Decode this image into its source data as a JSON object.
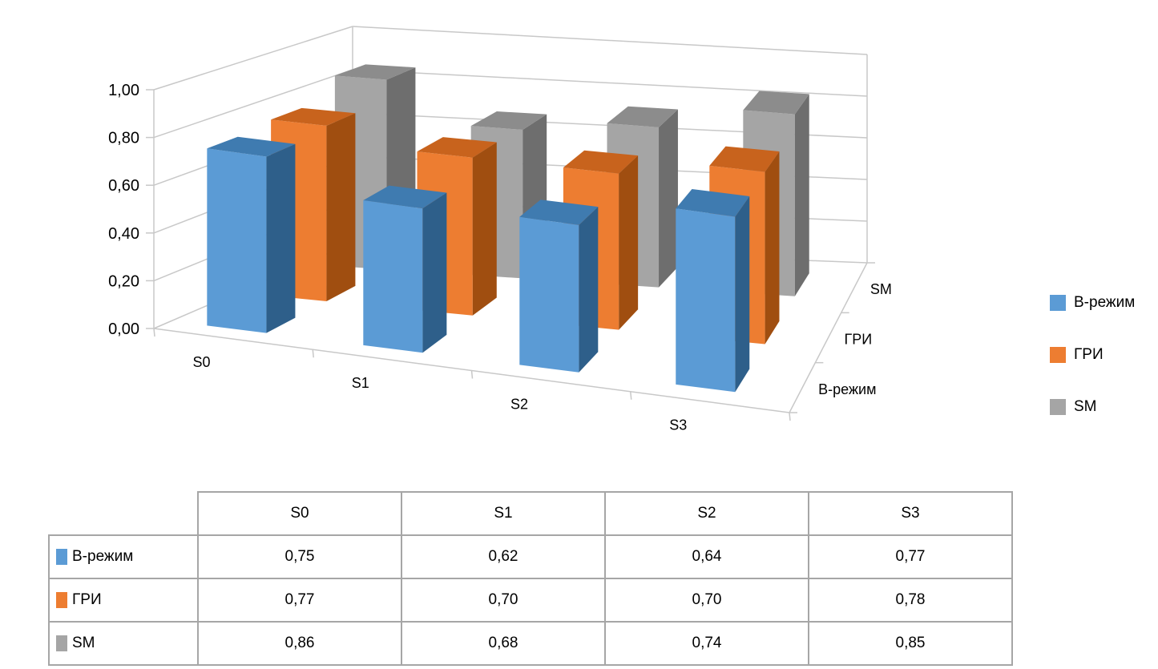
{
  "chart_data": {
    "type": "bar",
    "subtype": "3d-clustered-column",
    "categories": [
      "S0",
      "S1",
      "S2",
      "S3"
    ],
    "series": [
      {
        "name": "В-режим",
        "values": [
          0.75,
          0.62,
          0.64,
          0.77
        ],
        "color": "#5b9bd5"
      },
      {
        "name": "ГРИ",
        "values": [
          0.77,
          0.7,
          0.7,
          0.78
        ],
        "color": "#ed7d31"
      },
      {
        "name": "SM",
        "values": [
          0.86,
          0.68,
          0.74,
          0.85
        ],
        "color": "#a5a5a5"
      }
    ],
    "yticks": [
      "0,00",
      "0,20",
      "0,40",
      "0,60",
      "0,80",
      "1,00"
    ],
    "ylim": [
      0,
      1
    ],
    "grid": true,
    "legend": "right",
    "data_table": true
  }
}
